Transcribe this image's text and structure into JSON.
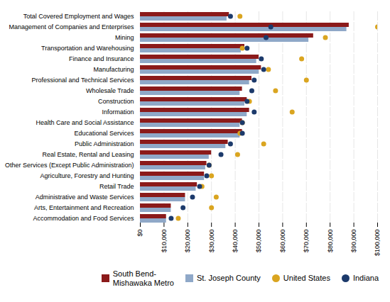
{
  "chart_data": {
    "type": "bar",
    "orientation": "horizontal",
    "categories": [
      "Total Covered Employment and Wages",
      "Management of Companies and Enterprises",
      "Mining",
      "Transportation and Warehousing",
      "Finance and Insurance",
      "Manufacturing",
      "Professional and Technical Services",
      "Wholesale Trade",
      "Construction",
      "Information",
      "Health Care and Social Assistance",
      "Educational Services",
      "Public Administration",
      "Real Estate, Rental and Leasing",
      "Other Services (Except Public Administration)",
      "Agriculture, Forestry and Hunting",
      "Retail Trade",
      "Administrative and Waste Services",
      "Arts, Entertainment and Recreation",
      "Accommodation and Food Services"
    ],
    "series": [
      {
        "name": "South Bend-\nMishawaka Metro",
        "type": "bar",
        "color": "#8B1A1A",
        "values": [
          37500,
          88000,
          73000,
          44000,
          50000,
          51000,
          47000,
          43000,
          45000,
          46000,
          43000,
          43000,
          37000,
          30000,
          28000,
          27000,
          24000,
          19000,
          13000,
          11000
        ]
      },
      {
        "name": "St. Joseph County",
        "type": "bar",
        "color": "#8FA8C8",
        "values": [
          36500,
          87000,
          71000,
          42500,
          49000,
          50000,
          46000,
          42000,
          44000,
          45000,
          42000,
          42000,
          36000,
          29000,
          27500,
          27000,
          23500,
          19000,
          13000,
          11000
        ]
      },
      {
        "name": "United States",
        "type": "scatter",
        "marker": "circle",
        "color": "#DAA520",
        "values": [
          42000,
          100000,
          78000,
          43000,
          68000,
          54000,
          70000,
          57000,
          46000,
          64000,
          43000,
          42000,
          52000,
          41000,
          29000,
          30000,
          26000,
          32000,
          30000,
          16000
        ]
      },
      {
        "name": "Indiana",
        "type": "scatter",
        "marker": "circle",
        "color": "#1C3A6B",
        "values": [
          38000,
          55000,
          53000,
          45000,
          51000,
          52000,
          48000,
          47000,
          45000,
          48000,
          43000,
          43000,
          38000,
          34000,
          29000,
          28000,
          25000,
          22000,
          18000,
          13000
        ]
      }
    ],
    "xlim": [
      0,
      100000
    ],
    "xticks": [
      {
        "value": 0,
        "label": "$0"
      },
      {
        "value": 10000,
        "label": "$10,000"
      },
      {
        "value": 20000,
        "label": "$20,000"
      },
      {
        "value": 30000,
        "label": "$30,000"
      },
      {
        "value": 40000,
        "label": "$40,000"
      },
      {
        "value": 50000,
        "label": "$50,000"
      },
      {
        "value": 60000,
        "label": "$60,000"
      },
      {
        "value": 70000,
        "label": "$70,000"
      },
      {
        "value": 80000,
        "label": "$80,000"
      },
      {
        "value": 90000,
        "label": "$90,000"
      },
      {
        "value": 100000,
        "label": "$100,000"
      }
    ],
    "grid": true,
    "legend": "right"
  }
}
